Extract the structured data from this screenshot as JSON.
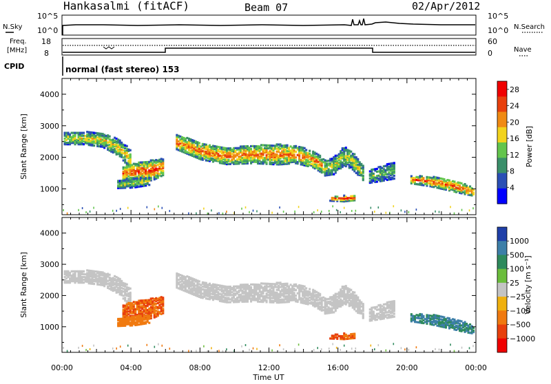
{
  "header": {
    "station": "Hankasalmi (fitACF)",
    "beam": "Beam 07",
    "date": "02/Apr/2012"
  },
  "sky_panel": {
    "left_label": "N.Sky",
    "right_label": "N.Search",
    "left_ticks": [
      "10^5",
      "10^0"
    ],
    "right_ticks": [
      "10^5",
      "10^0"
    ]
  },
  "freq_panel": {
    "left_label_1": "Freq.",
    "left_label_2": "[MHz]",
    "left_ticks": [
      "18",
      "8"
    ],
    "right_label": "Nave",
    "right_ticks": [
      "60",
      "0"
    ]
  },
  "cpid": {
    "label": "CPID",
    "text": "normal (fast stereo) 153"
  },
  "time_axis": {
    "ticks": [
      "00:00",
      "04:00",
      "08:00",
      "12:00",
      "16:00",
      "20:00",
      "00:00"
    ],
    "label": "Time UT"
  },
  "chart_data": [
    {
      "type": "heatmap",
      "ylabel": "Slant Range [km]",
      "yticks": [
        "1000",
        "2000",
        "3000",
        "4000"
      ],
      "ylim": [
        180,
        4500
      ],
      "xlim_hours": [
        0,
        24
      ],
      "colorbar": {
        "label": "Power [dB]",
        "ticks": [
          "4",
          "8",
          "12",
          "16",
          "20",
          "24",
          "28"
        ],
        "colors": [
          "#0000ff",
          "#2a4fb5",
          "#3a8f6a",
          "#63c54d",
          "#f2d31d",
          "#f08a13",
          "#e8400d",
          "#f00000"
        ],
        "range": [
          0,
          30
        ]
      },
      "bands": [
        {
          "x": [
            0.1,
            1.2,
            2.3,
            3.3,
            4.0
          ],
          "y": [
            2600,
            2620,
            2560,
            2300,
            1900
          ],
          "w": [
            180,
            200,
            220,
            260,
            320
          ],
          "v": 16
        },
        {
          "x": [
            3.5,
            4.3,
            5.2,
            5.8
          ],
          "y": [
            1500,
            1550,
            1600,
            1700
          ],
          "w": [
            220,
            300,
            320,
            260
          ],
          "v": 23
        },
        {
          "x": [
            3.2,
            4.1,
            5.0
          ],
          "y": [
            1150,
            1200,
            1250
          ],
          "w": [
            120,
            150,
            120
          ],
          "v": 14
        },
        {
          "x": [
            6.6,
            8.0,
            9.5,
            11.0,
            12.5,
            13.5,
            14.5,
            15.2
          ],
          "y": [
            2500,
            2200,
            2050,
            2100,
            2100,
            2100,
            1950,
            1700
          ],
          "w": [
            240,
            260,
            260,
            280,
            320,
            280,
            260,
            240
          ],
          "v": 21
        },
        {
          "x": [
            15.2,
            15.7,
            16.3,
            16.8,
            17.5
          ],
          "y": [
            1650,
            1750,
            2050,
            1900,
            1450
          ],
          "w": [
            220,
            280,
            300,
            280,
            220
          ],
          "v": 15
        },
        {
          "x": [
            17.8,
            18.5,
            19.3
          ],
          "y": [
            1400,
            1500,
            1600
          ],
          "w": [
            200,
            240,
            260
          ],
          "v": 12
        },
        {
          "x": [
            15.5,
            16.3,
            17.0
          ],
          "y": [
            700,
            700,
            720
          ],
          "w": [
            70,
            90,
            70
          ],
          "v": 25
        },
        {
          "x": [
            20.2,
            21.3,
            22.3,
            23.3,
            23.9
          ],
          "y": [
            1300,
            1250,
            1150,
            1000,
            900
          ],
          "w": [
            120,
            160,
            180,
            160,
            120
          ],
          "v": 22
        }
      ]
    },
    {
      "type": "heatmap",
      "ylabel": "Slant Range [km]",
      "yticks": [
        "1000",
        "2000",
        "3000",
        "4000"
      ],
      "ylim": [
        180,
        4500
      ],
      "xlim_hours": [
        0,
        24
      ],
      "colorbar": {
        "label": "Velocity [m s⁻¹]",
        "ticks": [
          "1000",
          "500",
          "100",
          "25",
          "−25",
          "−100",
          "−500",
          "−1000"
        ],
        "colors": [
          "#1f3fa8",
          "#3d7fa8",
          "#2e8a5c",
          "#6bbd3c",
          "#c4c4c4",
          "#f0b00e",
          "#f07a10",
          "#e8400d",
          "#f00000"
        ],
        "range": [
          -1000,
          1000
        ]
      },
      "bands": [
        {
          "x": [
            0.1,
            1.2,
            2.3,
            3.3,
            4.0
          ],
          "y": [
            2600,
            2620,
            2560,
            2300,
            1900
          ],
          "w": [
            180,
            200,
            220,
            260,
            320
          ],
          "v": 0
        },
        {
          "x": [
            3.5,
            4.3,
            5.2,
            5.8
          ],
          "y": [
            1500,
            1550,
            1600,
            1700
          ],
          "w": [
            220,
            300,
            320,
            260
          ],
          "v": -300
        },
        {
          "x": [
            3.2,
            4.1,
            5.0
          ],
          "y": [
            1150,
            1200,
            1250
          ],
          "w": [
            120,
            150,
            120
          ],
          "v": -120
        },
        {
          "x": [
            6.6,
            8.0,
            9.5,
            11.0,
            12.5,
            13.5,
            14.5,
            15.2
          ],
          "y": [
            2500,
            2200,
            2050,
            2100,
            2100,
            2100,
            1950,
            1700
          ],
          "w": [
            240,
            260,
            260,
            280,
            320,
            280,
            260,
            240
          ],
          "v": 0
        },
        {
          "x": [
            15.2,
            15.7,
            16.3,
            16.8,
            17.5
          ],
          "y": [
            1650,
            1750,
            2050,
            1900,
            1450
          ],
          "w": [
            220,
            280,
            300,
            280,
            220
          ],
          "v": 0
        },
        {
          "x": [
            17.8,
            18.5,
            19.3
          ],
          "y": [
            1400,
            1500,
            1600
          ],
          "w": [
            200,
            240,
            260
          ],
          "v": 0
        },
        {
          "x": [
            15.5,
            16.3,
            17.0
          ],
          "y": [
            700,
            700,
            720
          ],
          "w": [
            70,
            90,
            70
          ],
          "v": -300
        },
        {
          "x": [
            20.2,
            21.3,
            22.3,
            23.3,
            23.9
          ],
          "y": [
            1300,
            1250,
            1150,
            1000,
            900
          ],
          "w": [
            120,
            160,
            180,
            160,
            120
          ],
          "v": 300
        }
      ]
    }
  ]
}
